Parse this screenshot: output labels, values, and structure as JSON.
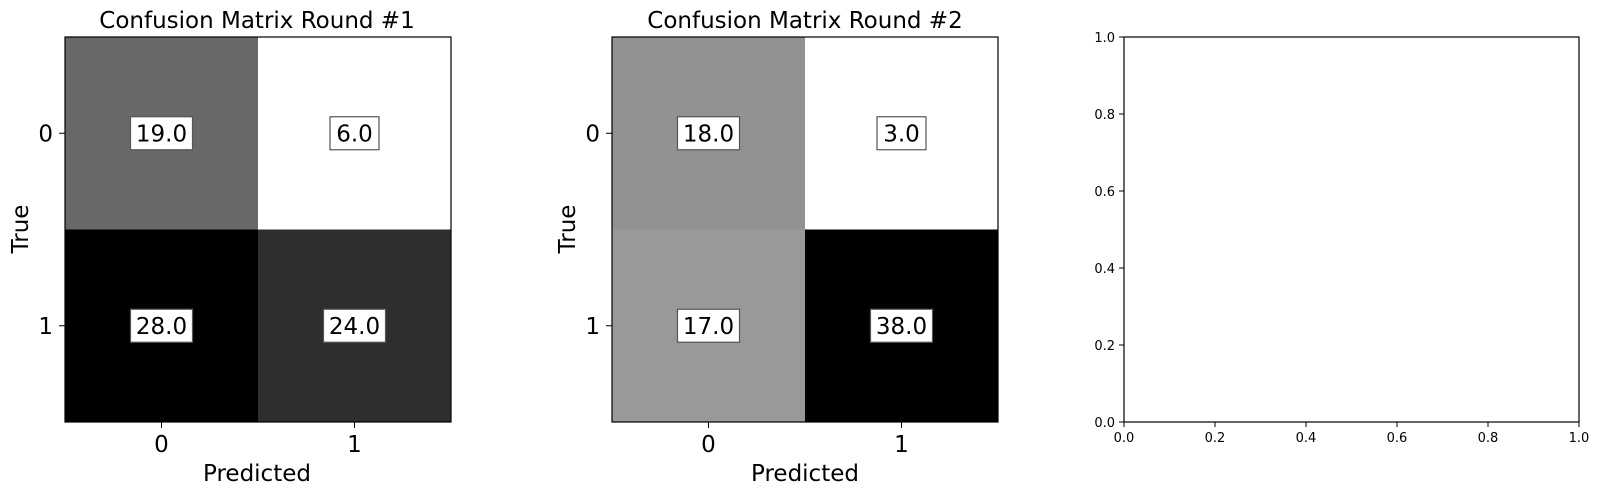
{
  "chart_data": [
    {
      "type": "heatmap",
      "title": "Confusion Matrix Round #1",
      "xlabel": "Predicted",
      "ylabel": "True",
      "x_tick_labels": [
        "0",
        "1"
      ],
      "y_tick_labels": [
        "0",
        "1"
      ],
      "matrix": [
        [
          19.0,
          6.0
        ],
        [
          28.0,
          24.0
        ]
      ],
      "cell_labels": [
        [
          "19.0",
          "6.0"
        ],
        [
          "28.0",
          "24.0"
        ]
      ],
      "colormap": "gray_r"
    },
    {
      "type": "heatmap",
      "title": "Confusion Matrix Round #2",
      "xlabel": "Predicted",
      "ylabel": "True",
      "x_tick_labels": [
        "0",
        "1"
      ],
      "y_tick_labels": [
        "0",
        "1"
      ],
      "matrix": [
        [
          18.0,
          3.0
        ],
        [
          17.0,
          38.0
        ]
      ],
      "cell_labels": [
        [
          "18.0",
          "3.0"
        ],
        [
          "17.0",
          "38.0"
        ]
      ],
      "colormap": "gray_r"
    },
    {
      "type": "scatter",
      "title": "",
      "xlabel": "",
      "ylabel": "",
      "xlim": [
        0.0,
        1.0
      ],
      "ylim": [
        0.0,
        1.0
      ],
      "x_tick_labels": [
        "0.0",
        "0.2",
        "0.4",
        "0.6",
        "0.8",
        "1.0"
      ],
      "y_tick_labels": [
        "0.0",
        "0.2",
        "0.4",
        "0.6",
        "0.8",
        "1.0"
      ],
      "series": []
    }
  ]
}
